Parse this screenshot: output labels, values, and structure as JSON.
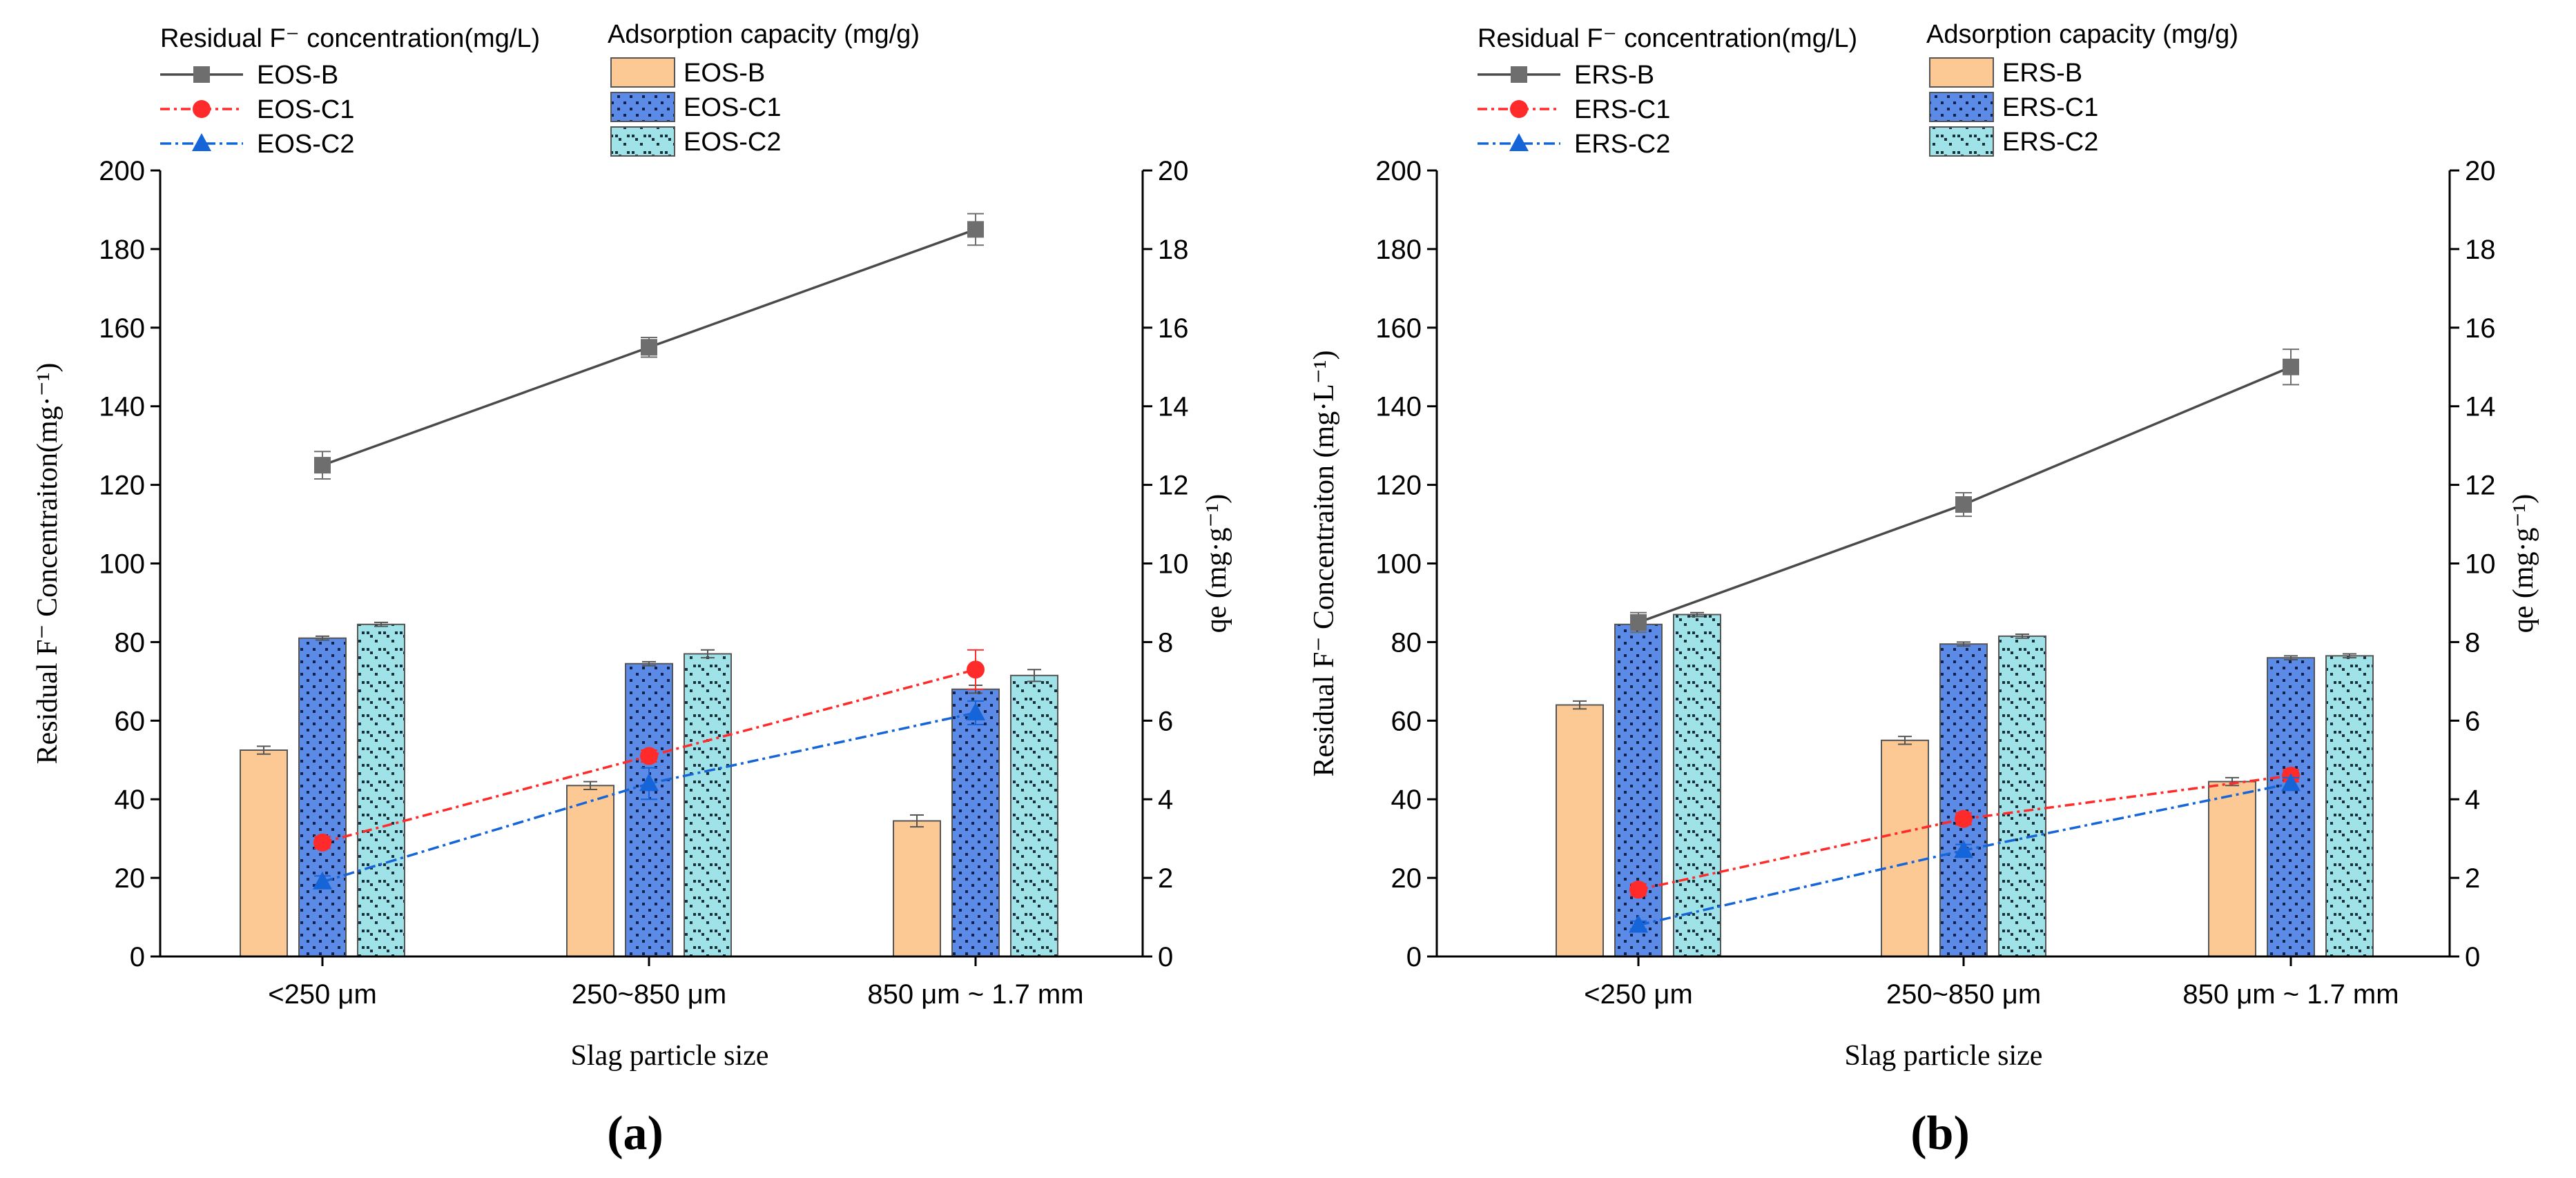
{
  "colors": {
    "b_line": "#4a4a4a",
    "b_marker": "#6e6e6e",
    "c1_line": "#ff2a2a",
    "c2_line": "#1565d8",
    "b_bar": "#fcc894",
    "c1_bar": "#5b8be6",
    "c2_bar": "#9fe3e9",
    "axis": "#000000",
    "errorbar": "#555555"
  },
  "chart_data": [
    {
      "panel_label": "(a)",
      "type": "bar+line",
      "categories": [
        "<250 μm",
        "250~850 μm",
        "850 μm ~ 1.7 mm"
      ],
      "xlabel": "Slag particle size",
      "ylabel_left": "Residual F⁻ Concentraiton(mg·⁻¹)",
      "ylabel_right": "qe (mg·g⁻¹)",
      "ylim_left": [
        0,
        200
      ],
      "ylim_right": [
        0,
        20
      ],
      "yticks_left": [
        0,
        20,
        40,
        60,
        80,
        100,
        120,
        140,
        160,
        180,
        200
      ],
      "yticks_right": [
        0,
        2,
        4,
        6,
        8,
        10,
        12,
        14,
        16,
        18,
        20
      ],
      "legend": {
        "line_title": "Residual F⁻ concentration(mg/L)",
        "bar_title": "Adsorption capacity (mg/g)",
        "line_items": [
          "EOS-B",
          "EOS-C1",
          "EOS-C2"
        ],
        "bar_items": [
          "EOS-B",
          "EOS-C1",
          "EOS-C2"
        ]
      },
      "bar_series": [
        {
          "name": "EOS-B",
          "values": [
            5.25,
            4.35,
            3.45
          ],
          "errors": [
            0.1,
            0.1,
            0.15
          ]
        },
        {
          "name": "EOS-C1",
          "values": [
            8.1,
            7.45,
            6.8
          ],
          "errors": [
            0.05,
            0.05,
            0.1
          ]
        },
        {
          "name": "EOS-C2",
          "values": [
            8.45,
            7.7,
            7.15
          ],
          "errors": [
            0.05,
            0.1,
            0.15
          ]
        }
      ],
      "line_series": [
        {
          "name": "EOS-B",
          "values": [
            125,
            155,
            185
          ],
          "errors": [
            3.5,
            2.5,
            4
          ]
        },
        {
          "name": "EOS-C1",
          "values": [
            29,
            51,
            73
          ],
          "errors": [
            1.5,
            1.5,
            5
          ]
        },
        {
          "name": "EOS-C2",
          "values": [
            19,
            44,
            62
          ],
          "errors": [
            1.5,
            4,
            3
          ]
        }
      ]
    },
    {
      "panel_label": "(b)",
      "type": "bar+line",
      "categories": [
        "<250 μm",
        "250~850 μm",
        "850 μm ~ 1.7 mm"
      ],
      "xlabel": "Slag particle size",
      "ylabel_left": "Residual F⁻ Concentraiton (mg·L⁻¹)",
      "ylabel_right": "qe (mg·g⁻¹)",
      "ylim_left": [
        0,
        200
      ],
      "ylim_right": [
        0,
        20
      ],
      "yticks_left": [
        0,
        20,
        40,
        60,
        80,
        100,
        120,
        140,
        160,
        180,
        200
      ],
      "yticks_right": [
        0,
        2,
        4,
        6,
        8,
        10,
        12,
        14,
        16,
        18,
        20
      ],
      "legend": {
        "line_title": "Residual F⁻ concentration(mg/L)",
        "bar_title": "Adsorption capacity (mg/g)",
        "line_items": [
          "ERS-B",
          "ERS-C1",
          "ERS-C2"
        ],
        "bar_items": [
          "ERS-B",
          "ERS-C1",
          "ERS-C2"
        ]
      },
      "bar_series": [
        {
          "name": "ERS-B",
          "values": [
            6.4,
            5.5,
            4.45
          ],
          "errors": [
            0.1,
            0.1,
            0.1
          ]
        },
        {
          "name": "ERS-C1",
          "values": [
            8.45,
            7.95,
            7.6
          ],
          "errors": [
            0.2,
            0.05,
            0.05
          ]
        },
        {
          "name": "ERS-C2",
          "values": [
            8.7,
            8.15,
            7.65
          ],
          "errors": [
            0.05,
            0.05,
            0.05
          ]
        }
      ],
      "line_series": [
        {
          "name": "ERS-B",
          "values": [
            85,
            115,
            150
          ],
          "errors": [
            2.5,
            3,
            4.5
          ]
        },
        {
          "name": "ERS-C1",
          "values": [
            17,
            35,
            46
          ],
          "errors": [
            1.5,
            1.5,
            1.5
          ]
        },
        {
          "name": "ERS-C2",
          "values": [
            8,
            27,
            44
          ],
          "errors": [
            1,
            1.5,
            1.5
          ]
        }
      ]
    }
  ]
}
